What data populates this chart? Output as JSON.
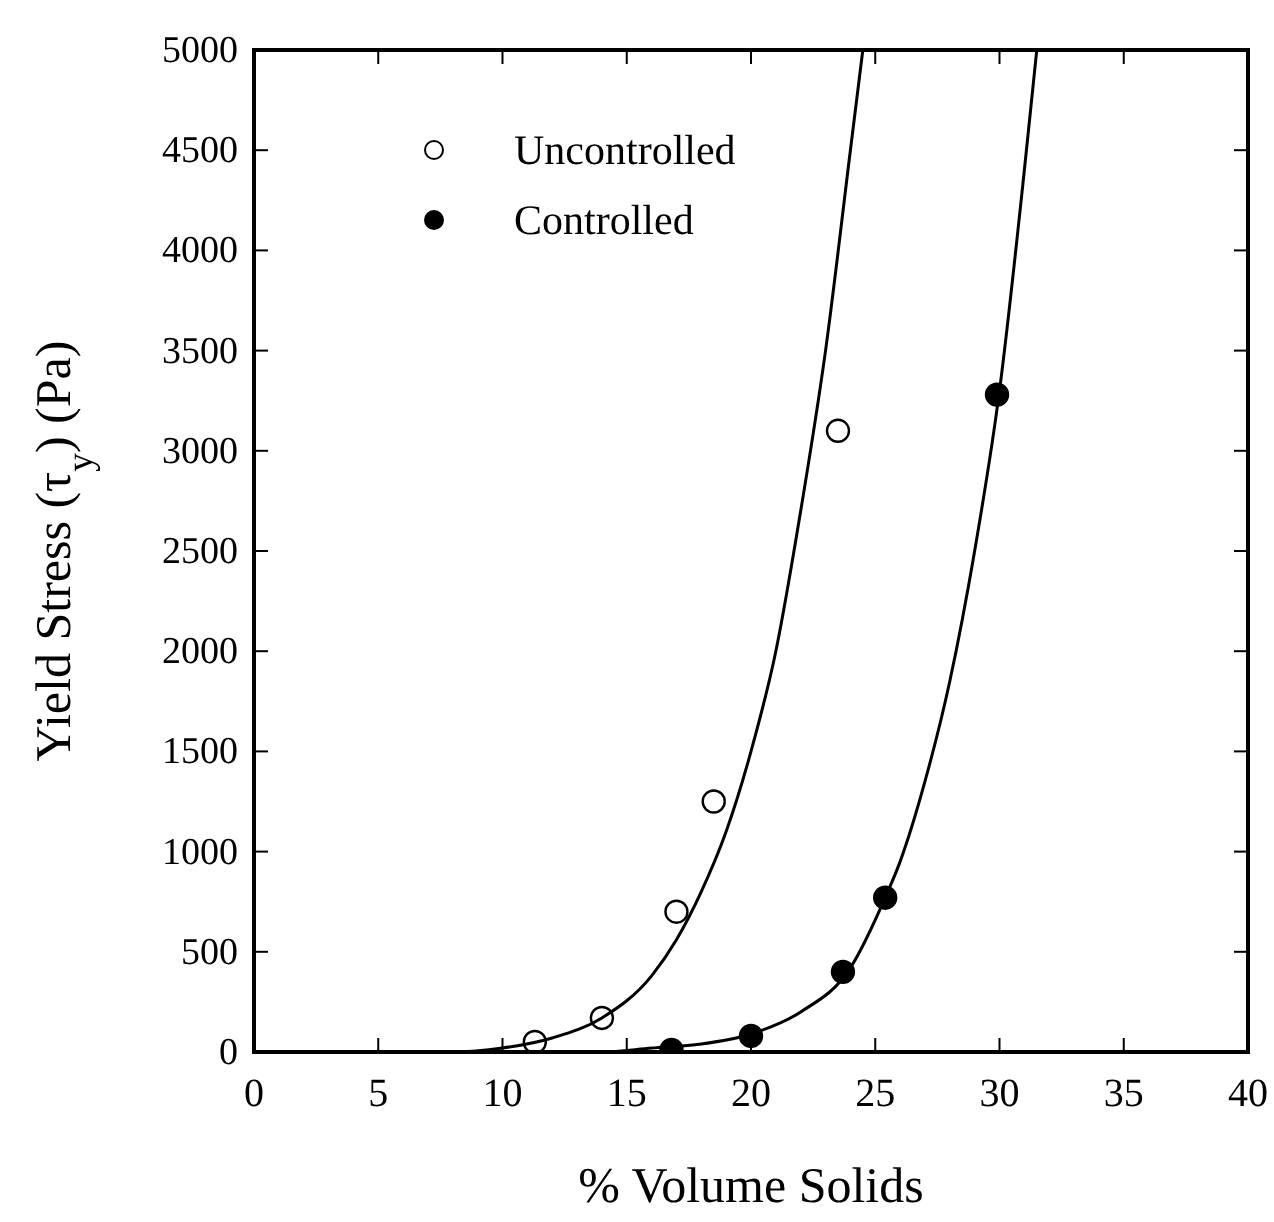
{
  "chart_data": {
    "type": "scatter",
    "xlabel": "% Volume Solids",
    "ylabel": "Yield Stress (τ$_{y}$)  (Pa)",
    "xlim": [
      0,
      40
    ],
    "ylim": [
      0,
      5000
    ],
    "xticks": [
      0,
      5,
      10,
      15,
      20,
      25,
      30,
      35,
      40
    ],
    "yticks": [
      0,
      500,
      1000,
      1500,
      2000,
      2500,
      3000,
      3500,
      4000,
      4500,
      5000
    ],
    "legend": "top left",
    "marker": "circle",
    "grid": false,
    "series": [
      {
        "name": "Uncontrolled",
        "color": "#ffffff",
        "x": [
          11.3,
          14,
          17,
          18.5,
          23.5
        ],
        "values": [
          50,
          170,
          700,
          1250,
          3100
        ]
      },
      {
        "name": "Controlled",
        "color": "#000000",
        "x": [
          16.8,
          20,
          23.7,
          25.4,
          29.9
        ],
        "values": [
          10,
          80,
          400,
          770,
          3280
        ]
      },
      {
        "type": "line",
        "color": "#000000",
        "marker": "none",
        "x": [
          0,
          5,
          8,
          10,
          12,
          14,
          16,
          17,
          18,
          19,
          20,
          21,
          22,
          23,
          24,
          24.5
        ],
        "values": [
          0,
          0,
          0,
          20,
          70,
          170,
          380,
          560,
          800,
          1100,
          1500,
          2000,
          2700,
          3500,
          4500,
          5000
        ]
      },
      {
        "type": "line",
        "color": "#000000",
        "marker": "none",
        "x": [
          0,
          10,
          14,
          16,
          18,
          20,
          22,
          24,
          25.4,
          26,
          27,
          28,
          29,
          30,
          31,
          31.5
        ],
        "values": [
          0,
          0,
          0,
          20,
          40,
          90,
          200,
          420,
          770,
          950,
          1350,
          1850,
          2500,
          3300,
          4400,
          5000
        ]
      }
    ]
  }
}
